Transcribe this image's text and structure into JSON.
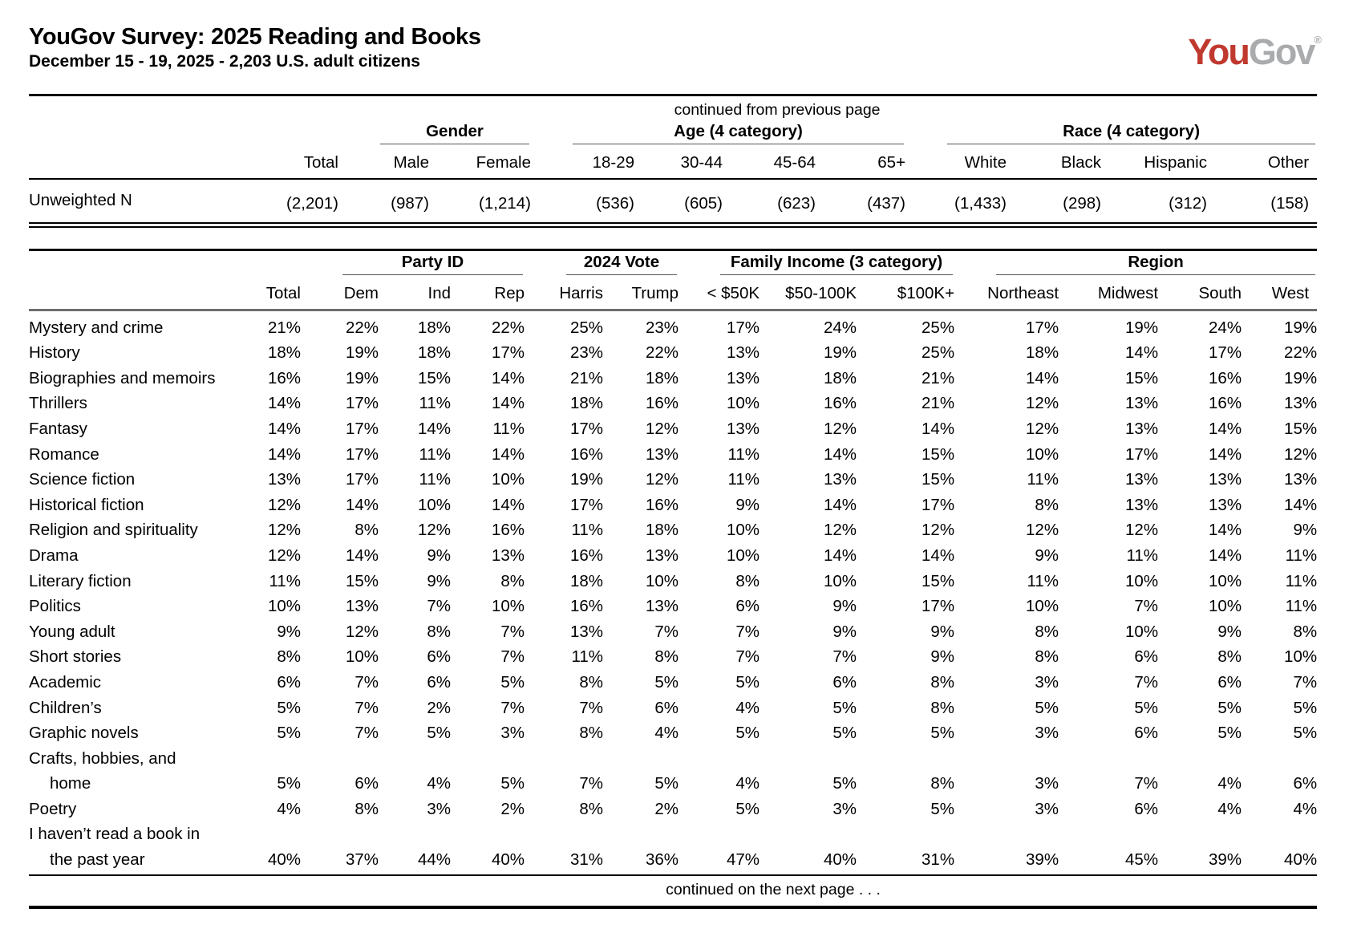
{
  "header": {
    "title": "YouGov Survey: 2025 Reading and Books",
    "subtitle": "December 15 - 19, 2025 - 2,203 U.S. adult citizens",
    "logo": {
      "part1": "You",
      "part2": "Gov",
      "registered": "®",
      "brand_red": "#c0392e",
      "brand_gray": "#a9abad"
    }
  },
  "table1": {
    "continued_note": "continued from previous page",
    "groups": [
      {
        "label": "",
        "span": 2
      },
      {
        "label": "Gender",
        "span": 2
      },
      {
        "label": "Age (4 category)",
        "span": 4
      },
      {
        "label": "Race (4 category)",
        "span": 4
      }
    ],
    "columns": [
      "",
      "Total",
      "Male",
      "Female",
      "18-29",
      "30-44",
      "45-64",
      "65+",
      "White",
      "Black",
      "Hispanic",
      "Other"
    ],
    "rows": [
      {
        "label_lines": [
          "Unweighted N"
        ],
        "values": [
          "(2,201)",
          "(987)",
          "(1,214)",
          "(536)",
          "(605)",
          "(623)",
          "(437)",
          "(1,433)",
          "(298)",
          "(312)",
          "(158)"
        ]
      }
    ]
  },
  "table2": {
    "groups": [
      {
        "label": "",
        "span": 2
      },
      {
        "label": "Party ID",
        "span": 3
      },
      {
        "label": "2024 Vote",
        "span": 2
      },
      {
        "label": "Family Income (3 category)",
        "span": 3
      },
      {
        "label": "Region",
        "span": 4
      }
    ],
    "columns": [
      "",
      "Total",
      "Dem",
      "Ind",
      "Rep",
      "Harris",
      "Trump",
      "< $50K",
      "$50-100K",
      "$100K+",
      "Northeast",
      "Midwest",
      "South",
      "West"
    ],
    "rows": [
      {
        "label_lines": [
          "Mystery and crime"
        ],
        "values": [
          "21%",
          "22%",
          "18%",
          "22%",
          "25%",
          "23%",
          "17%",
          "24%",
          "25%",
          "17%",
          "19%",
          "24%",
          "19%"
        ]
      },
      {
        "label_lines": [
          "History"
        ],
        "values": [
          "18%",
          "19%",
          "18%",
          "17%",
          "23%",
          "22%",
          "13%",
          "19%",
          "25%",
          "18%",
          "14%",
          "17%",
          "22%"
        ]
      },
      {
        "label_lines": [
          "Biographies and memoirs"
        ],
        "values": [
          "16%",
          "19%",
          "15%",
          "14%",
          "21%",
          "18%",
          "13%",
          "18%",
          "21%",
          "14%",
          "15%",
          "16%",
          "19%"
        ]
      },
      {
        "label_lines": [
          "Thrillers"
        ],
        "values": [
          "14%",
          "17%",
          "11%",
          "14%",
          "18%",
          "16%",
          "10%",
          "16%",
          "21%",
          "12%",
          "13%",
          "16%",
          "13%"
        ]
      },
      {
        "label_lines": [
          "Fantasy"
        ],
        "values": [
          "14%",
          "17%",
          "14%",
          "11%",
          "17%",
          "12%",
          "13%",
          "12%",
          "14%",
          "12%",
          "13%",
          "14%",
          "15%"
        ]
      },
      {
        "label_lines": [
          "Romance"
        ],
        "values": [
          "14%",
          "17%",
          "11%",
          "14%",
          "16%",
          "13%",
          "11%",
          "14%",
          "15%",
          "10%",
          "17%",
          "14%",
          "12%"
        ]
      },
      {
        "label_lines": [
          "Science fiction"
        ],
        "values": [
          "13%",
          "17%",
          "11%",
          "10%",
          "19%",
          "12%",
          "11%",
          "13%",
          "15%",
          "11%",
          "13%",
          "13%",
          "13%"
        ]
      },
      {
        "label_lines": [
          "Historical fiction"
        ],
        "values": [
          "12%",
          "14%",
          "10%",
          "14%",
          "17%",
          "16%",
          "9%",
          "14%",
          "17%",
          "8%",
          "13%",
          "13%",
          "14%"
        ]
      },
      {
        "label_lines": [
          "Religion and spirituality"
        ],
        "values": [
          "12%",
          "8%",
          "12%",
          "16%",
          "11%",
          "18%",
          "10%",
          "12%",
          "12%",
          "12%",
          "12%",
          "14%",
          "9%"
        ]
      },
      {
        "label_lines": [
          "Drama"
        ],
        "values": [
          "12%",
          "14%",
          "9%",
          "13%",
          "16%",
          "13%",
          "10%",
          "14%",
          "14%",
          "9%",
          "11%",
          "14%",
          "11%"
        ]
      },
      {
        "label_lines": [
          "Literary fiction"
        ],
        "values": [
          "11%",
          "15%",
          "9%",
          "8%",
          "18%",
          "10%",
          "8%",
          "10%",
          "15%",
          "11%",
          "10%",
          "10%",
          "11%"
        ]
      },
      {
        "label_lines": [
          "Politics"
        ],
        "values": [
          "10%",
          "13%",
          "7%",
          "10%",
          "16%",
          "13%",
          "6%",
          "9%",
          "17%",
          "10%",
          "7%",
          "10%",
          "11%"
        ]
      },
      {
        "label_lines": [
          "Young adult"
        ],
        "values": [
          "9%",
          "12%",
          "8%",
          "7%",
          "13%",
          "7%",
          "7%",
          "9%",
          "9%",
          "8%",
          "10%",
          "9%",
          "8%"
        ]
      },
      {
        "label_lines": [
          "Short stories"
        ],
        "values": [
          "8%",
          "10%",
          "6%",
          "7%",
          "11%",
          "8%",
          "7%",
          "7%",
          "9%",
          "8%",
          "6%",
          "8%",
          "10%"
        ]
      },
      {
        "label_lines": [
          "Academic"
        ],
        "values": [
          "6%",
          "7%",
          "6%",
          "5%",
          "8%",
          "5%",
          "5%",
          "6%",
          "8%",
          "3%",
          "7%",
          "6%",
          "7%"
        ]
      },
      {
        "label_lines": [
          "Children’s"
        ],
        "values": [
          "5%",
          "7%",
          "2%",
          "7%",
          "7%",
          "6%",
          "4%",
          "5%",
          "8%",
          "5%",
          "5%",
          "5%",
          "5%"
        ]
      },
      {
        "label_lines": [
          "Graphic novels"
        ],
        "values": [
          "5%",
          "7%",
          "5%",
          "3%",
          "8%",
          "4%",
          "5%",
          "5%",
          "5%",
          "3%",
          "6%",
          "5%",
          "5%"
        ]
      },
      {
        "label_lines": [
          "Crafts, hobbies, and",
          "home"
        ],
        "values": [
          "5%",
          "6%",
          "4%",
          "5%",
          "7%",
          "5%",
          "4%",
          "5%",
          "8%",
          "3%",
          "7%",
          "4%",
          "6%"
        ]
      },
      {
        "label_lines": [
          "Poetry"
        ],
        "values": [
          "4%",
          "8%",
          "3%",
          "2%",
          "8%",
          "2%",
          "5%",
          "3%",
          "5%",
          "3%",
          "6%",
          "4%",
          "4%"
        ]
      },
      {
        "label_lines": [
          "I haven’t read a book in",
          "the past year"
        ],
        "values": [
          "40%",
          "37%",
          "44%",
          "40%",
          "31%",
          "36%",
          "47%",
          "40%",
          "31%",
          "39%",
          "45%",
          "39%",
          "40%"
        ]
      }
    ],
    "footer_note": "continued on the next page . . ."
  }
}
